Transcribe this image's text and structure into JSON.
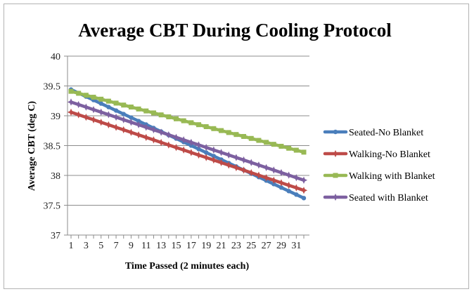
{
  "chart_data": {
    "type": "line",
    "title": "Average CBT During Cooling Protocol",
    "xlabel": "Time Passed (2 minutes each)",
    "ylabel": "Average CBT (deg C)",
    "ylim": [
      37,
      40
    ],
    "yticks": [
      "37",
      "37.5",
      "38",
      "38.5",
      "39",
      "39.5",
      "40"
    ],
    "xticks": [
      "1",
      "3",
      "5",
      "7",
      "9",
      "11",
      "13",
      "15",
      "17",
      "19",
      "21",
      "23",
      "25",
      "27",
      "29",
      "31"
    ],
    "x_count": 32,
    "legend_position": "right",
    "series": [
      {
        "name": "Seated-No Blanket",
        "color": "#4a7ebb",
        "marker": "circle",
        "start": 39.44,
        "end": 37.62
      },
      {
        "name": "Walking-No Blanket",
        "color": "#be4b48",
        "marker": "star",
        "start": 39.06,
        "end": 37.75
      },
      {
        "name": "Walking with Blanket",
        "color": "#98b954",
        "marker": "square",
        "start": 39.41,
        "end": 38.39
      },
      {
        "name": "Seated with Blanket",
        "color": "#7d60a0",
        "marker": "star",
        "start": 39.23,
        "end": 37.92
      }
    ]
  }
}
